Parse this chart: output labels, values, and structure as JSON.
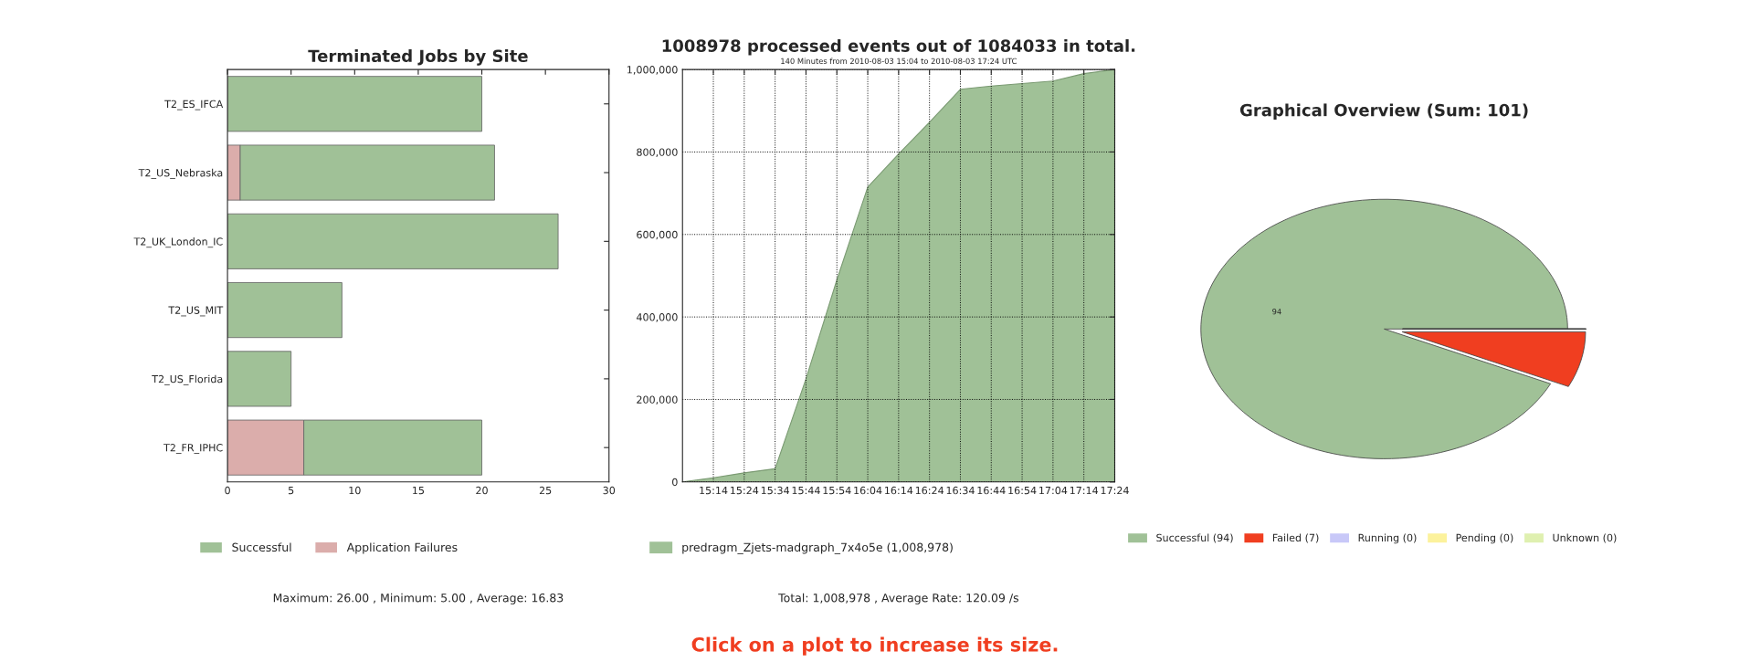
{
  "chart_data": [
    {
      "type": "bar",
      "title": "Terminated Jobs by Site",
      "orientation": "horizontal",
      "stacked": true,
      "categories": [
        "T2_ES_IFCA",
        "T2_US_Nebraska",
        "T2_UK_London_IC",
        "T2_US_MIT",
        "T2_US_Florida",
        "T2_FR_IPHC"
      ],
      "series": [
        {
          "name": "Application Failures",
          "color": "#dbadab",
          "values": [
            0,
            1,
            0,
            0,
            0,
            6
          ]
        },
        {
          "name": "Successful",
          "color": "#a0c197",
          "values": [
            20,
            20,
            26,
            9,
            5,
            14
          ]
        }
      ],
      "xlim": [
        0,
        30
      ],
      "xticks": [
        0,
        5,
        10,
        15,
        20,
        25,
        30
      ],
      "legend": "bottom",
      "annotations": [
        "Maximum: 26.00 , Minimum: 5.00 , Average: 16.83"
      ]
    },
    {
      "type": "area",
      "title": "1008978 processed events out of 1084033 in total.",
      "subtitle": "140 Minutes from 2010-08-03 15:04 to 2010-08-03 17:24 UTC",
      "x": [
        15.0667,
        15.2333,
        15.4,
        15.5667,
        15.7333,
        15.9,
        16.0667,
        16.2333,
        16.4,
        16.5667,
        16.7333,
        16.9,
        17.0667,
        17.2333,
        17.4
      ],
      "series": [
        {
          "name": "predragm_Zjets-madgraph_7x4o5e (1,008,978)",
          "color": "#a0c197",
          "values": [
            0,
            10000,
            22000,
            32000,
            250000,
            490000,
            715000,
            795000,
            872000,
            952000,
            960000,
            966000,
            972000,
            990000,
            1000000
          ]
        }
      ],
      "xlim": [
        15.0667,
        17.4
      ],
      "xticks": [
        {
          "value": 15.2333,
          "label": "15:14"
        },
        {
          "value": 15.4,
          "label": "15:24"
        },
        {
          "value": 15.5667,
          "label": "15:34"
        },
        {
          "value": 15.7333,
          "label": "15:44"
        },
        {
          "value": 15.9,
          "label": "15:54"
        },
        {
          "value": 16.0667,
          "label": "16:04"
        },
        {
          "value": 16.2333,
          "label": "16:14"
        },
        {
          "value": 16.4,
          "label": "16:24"
        },
        {
          "value": 16.5667,
          "label": "16:34"
        },
        {
          "value": 16.7333,
          "label": "16:44"
        },
        {
          "value": 16.9,
          "label": "16:54"
        },
        {
          "value": 17.0667,
          "label": "17:04"
        },
        {
          "value": 17.2333,
          "label": "17:14"
        },
        {
          "value": 17.4,
          "label": "17:24"
        }
      ],
      "ylim": [
        0,
        1000000
      ],
      "yticks": [
        {
          "value": 0,
          "label": "0"
        },
        {
          "value": 200000,
          "label": "200,000"
        },
        {
          "value": 400000,
          "label": "400,000"
        },
        {
          "value": 600000,
          "label": "600,000"
        },
        {
          "value": 800000,
          "label": "800,000"
        },
        {
          "value": 1000000,
          "label": "1,000,000"
        }
      ],
      "grid": true,
      "line_style": "dotted",
      "legend": "bottom",
      "annotations": [
        "Total: 1,008,978 , Average Rate: 120.09 /s",
        "Click on a plot to increase its size."
      ]
    },
    {
      "type": "pie",
      "title": "Graphical Overview (Sum: 101)",
      "categories": [
        "Successful (94)",
        "Failed (7)",
        "Running (0)",
        "Pending (0)",
        "Unknown (0)"
      ],
      "values": [
        94,
        7,
        0,
        0,
        0
      ],
      "colors": [
        "#a0c197",
        "#f03e20",
        "#c8c8f8",
        "#fcf29c",
        "#dff0b0"
      ],
      "value_labels": [
        "94",
        null,
        null,
        null,
        null
      ],
      "legend": "bottom"
    }
  ]
}
